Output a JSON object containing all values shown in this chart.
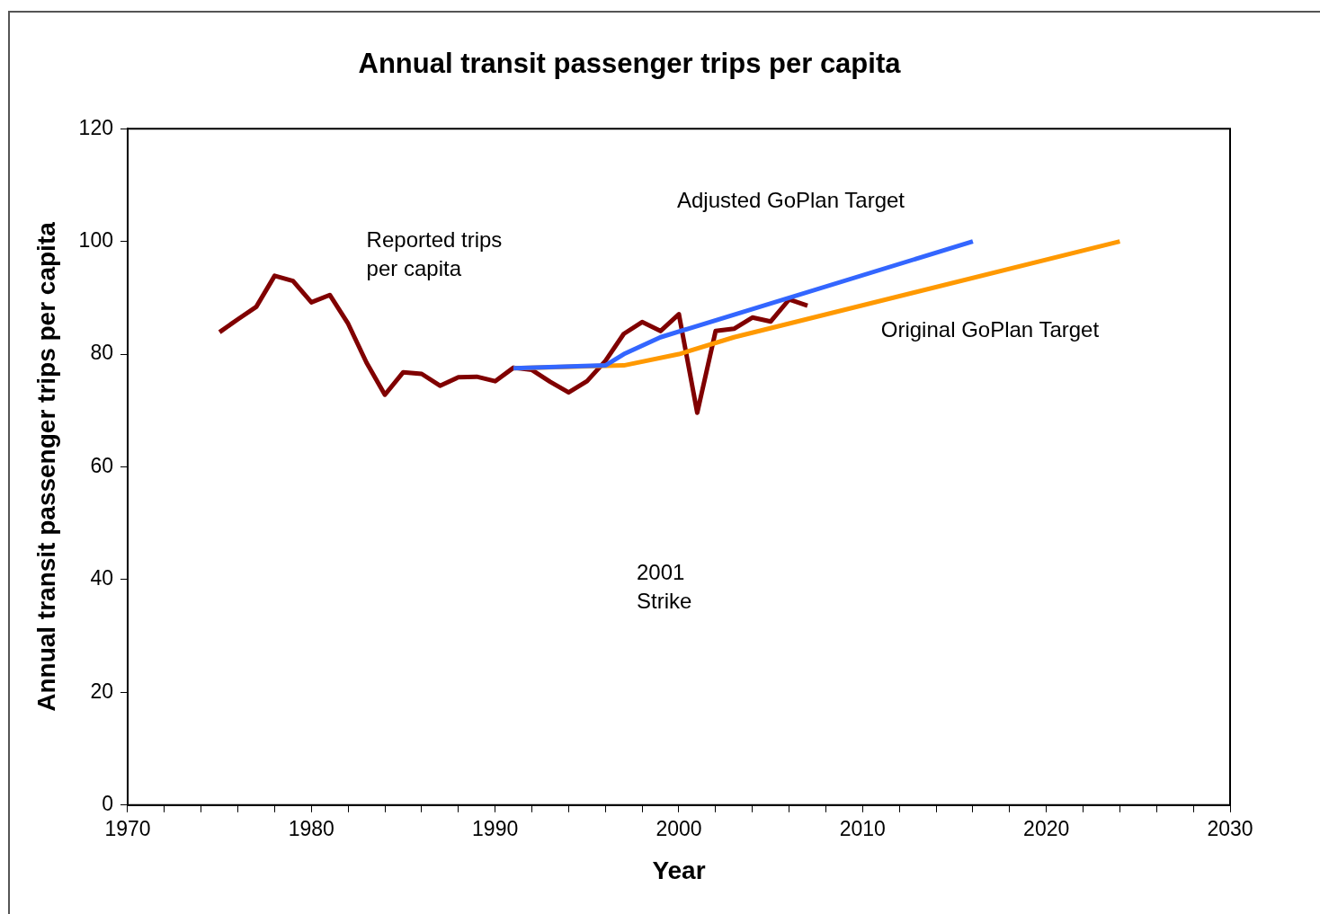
{
  "chart_data": {
    "type": "line",
    "title": "Annual transit passenger trips per capita",
    "xlabel": "Year",
    "ylabel": "Annual transit passenger trips per capita",
    "xlim": [
      1970,
      2030
    ],
    "xticks": [
      1970,
      {
        "value": 1972,
        "label": null
      },
      {
        "value": 1974,
        "label": null
      },
      {
        "value": 1976,
        "label": null
      },
      {
        "value": 1978,
        "label": null
      },
      1980,
      {
        "value": 1982,
        "label": null
      },
      {
        "value": 1984,
        "label": null
      },
      {
        "value": 1986,
        "label": null
      },
      {
        "value": 1988,
        "label": null
      },
      1990,
      {
        "value": 1992,
        "label": null
      },
      {
        "value": 1994,
        "label": null
      },
      {
        "value": 1996,
        "label": null
      },
      {
        "value": 1998,
        "label": null
      },
      2000,
      {
        "value": 2002,
        "label": null
      },
      {
        "value": 2004,
        "label": null
      },
      {
        "value": 2006,
        "label": null
      },
      {
        "value": 2008,
        "label": null
      },
      2010,
      {
        "value": 2012,
        "label": null
      },
      {
        "value": 2014,
        "label": null
      },
      {
        "value": 2016,
        "label": null
      },
      {
        "value": 2018,
        "label": null
      },
      2020,
      {
        "value": 2022,
        "label": null
      },
      {
        "value": 2024,
        "label": null
      },
      {
        "value": 2026,
        "label": null
      },
      {
        "value": 2028,
        "label": null
      },
      2030
    ],
    "ylim": [
      0,
      120
    ],
    "yticks": [
      0,
      20,
      40,
      60,
      80,
      100,
      120
    ],
    "grid": false,
    "legend": false,
    "marker": "none",
    "line_style": "solid",
    "series": [
      {
        "name": "Reported trips per capita",
        "color": "#800000",
        "x": [
          1975,
          1976,
          1977,
          1978,
          1979,
          1980,
          1981,
          1982,
          1983,
          1984,
          1985,
          1986,
          1987,
          1988,
          1989,
          1990,
          1991,
          1992,
          1993,
          1994,
          1995,
          1996,
          1997,
          1998,
          1999,
          2000,
          2001,
          2002,
          2003,
          2004,
          2005,
          2006,
          2007
        ],
        "values": [
          83.9,
          86.2,
          88.4,
          93.9,
          93.0,
          89.2,
          90.5,
          85.4,
          78.5,
          72.8,
          76.8,
          76.5,
          74.4,
          75.9,
          76.0,
          75.2,
          77.6,
          77.2,
          75.1,
          73.2,
          75.2,
          78.8,
          83.6,
          85.7,
          84.1,
          87.1,
          69.6,
          84.1,
          84.5,
          86.5,
          85.8,
          89.7,
          88.6
        ]
      },
      {
        "name": "Original GoPlan Target",
        "color": "#ff9900",
        "x": [
          1991,
          1997,
          2000,
          2003,
          2024
        ],
        "values": [
          77.5,
          78,
          80,
          83,
          100
        ]
      },
      {
        "name": "Adjusted GoPlan Target",
        "color": "#3366ff",
        "x": [
          1991,
          1996,
          1997,
          1999,
          2016
        ],
        "values": [
          77.5,
          78,
          80,
          83,
          100
        ]
      }
    ],
    "annotations": [
      "2001\nStrike"
    ]
  }
}
